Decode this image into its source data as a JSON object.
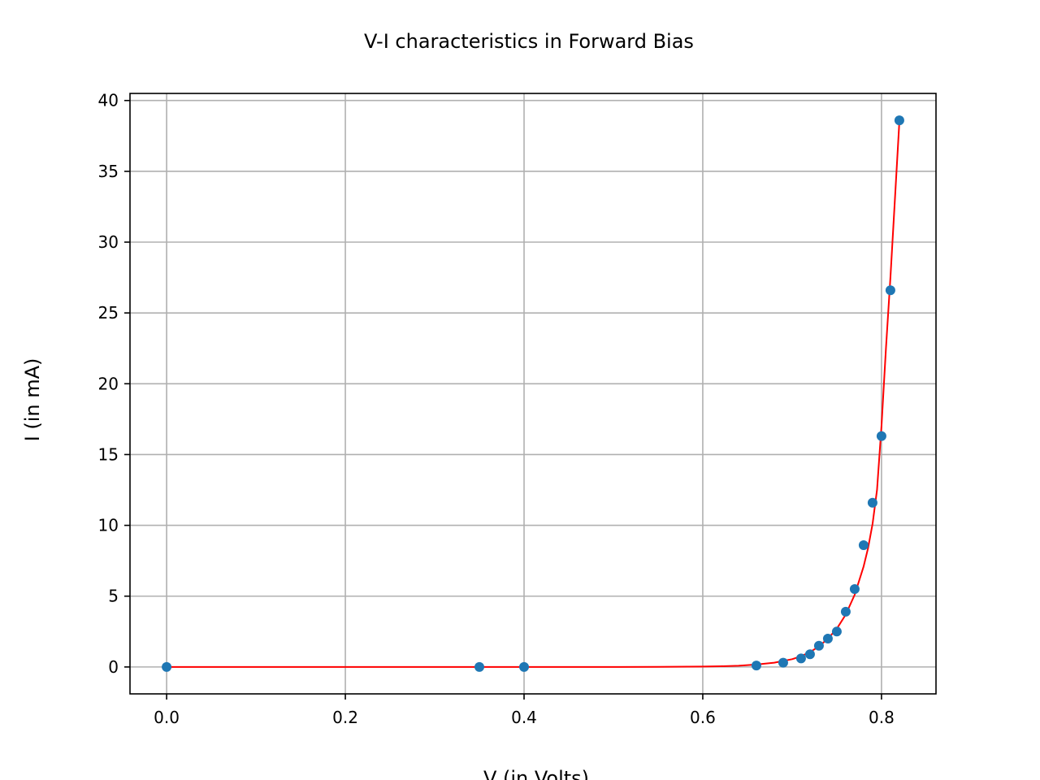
{
  "chart_data": {
    "type": "scatter",
    "title": "V-I characteristics in Forward Bias",
    "xlabel": "V (in Volts)",
    "ylabel": "I (in mA)",
    "xlim": [
      -0.041,
      0.861
    ],
    "ylim": [
      -1.9,
      40.5
    ],
    "x_ticks": [
      0.0,
      0.2,
      0.4,
      0.6,
      0.8
    ],
    "x_tick_labels": [
      "0.0",
      "0.2",
      "0.4",
      "0.6",
      "0.8"
    ],
    "y_ticks": [
      0,
      5,
      10,
      15,
      20,
      25,
      30,
      35,
      40
    ],
    "y_tick_labels": [
      "0",
      "5",
      "10",
      "15",
      "20",
      "25",
      "30",
      "35",
      "40"
    ],
    "grid": true,
    "series": [
      {
        "type": "scatter",
        "color": "#1f77b4",
        "x": [
          0.0,
          0.35,
          0.4,
          0.66,
          0.69,
          0.71,
          0.72,
          0.73,
          0.74,
          0.75,
          0.76,
          0.77,
          0.78,
          0.79,
          0.8,
          0.81,
          0.82
        ],
        "y": [
          0.0,
          0.0,
          0.0,
          0.1,
          0.3,
          0.6,
          0.9,
          1.5,
          2.0,
          2.5,
          3.9,
          5.5,
          8.6,
          11.6,
          16.3,
          26.6,
          38.6
        ]
      },
      {
        "type": "line",
        "color": "#ff0000",
        "x": [
          0.0,
          0.1,
          0.2,
          0.3,
          0.4,
          0.5,
          0.55,
          0.6,
          0.62,
          0.64,
          0.66,
          0.68,
          0.7,
          0.71,
          0.72,
          0.73,
          0.74,
          0.75,
          0.76,
          0.77,
          0.78,
          0.785,
          0.79,
          0.795,
          0.8,
          0.805,
          0.81,
          0.815,
          0.82
        ],
        "y": [
          0.0,
          0.0,
          0.0,
          0.0,
          0.0,
          0.0,
          0.01,
          0.03,
          0.05,
          0.09,
          0.17,
          0.3,
          0.55,
          0.76,
          1.05,
          1.45,
          2.0,
          2.7,
          3.7,
          5.1,
          7.1,
          8.4,
          10.1,
          12.5,
          17.0,
          22.5,
          27.5,
          33.0,
          38.5
        ]
      }
    ]
  }
}
